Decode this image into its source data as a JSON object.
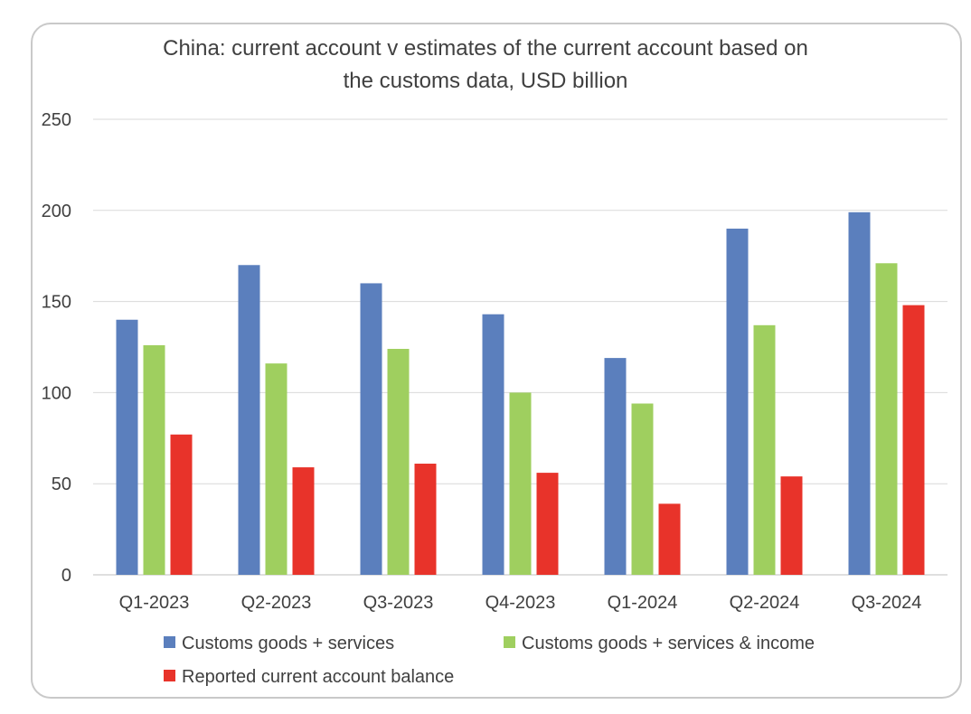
{
  "chart_data": {
    "type": "bar",
    "title_lines": [
      "China: current account v estimates of the current account based on",
      "the customs data, USD billion"
    ],
    "categories": [
      "Q1-2023",
      "Q2-2023",
      "Q3-2023",
      "Q4-2023",
      "Q1-2024",
      "Q2-2024",
      "Q3-2024"
    ],
    "series": [
      {
        "name": "Customs goods + services",
        "color": "#5b7fbd",
        "values": [
          140,
          170,
          160,
          143,
          119,
          190,
          199
        ]
      },
      {
        "name": "Customs goods + services & income",
        "color": "#9fcf5f",
        "values": [
          126,
          116,
          124,
          100,
          94,
          137,
          171
        ]
      },
      {
        "name": "Reported current account balance",
        "color": "#e8332a",
        "values": [
          77,
          59,
          61,
          56,
          39,
          54,
          148
        ]
      }
    ],
    "ylim": [
      0,
      250
    ],
    "yticks": [
      0,
      50,
      100,
      150,
      200,
      250
    ],
    "grid": true,
    "legend_position": "bottom"
  }
}
